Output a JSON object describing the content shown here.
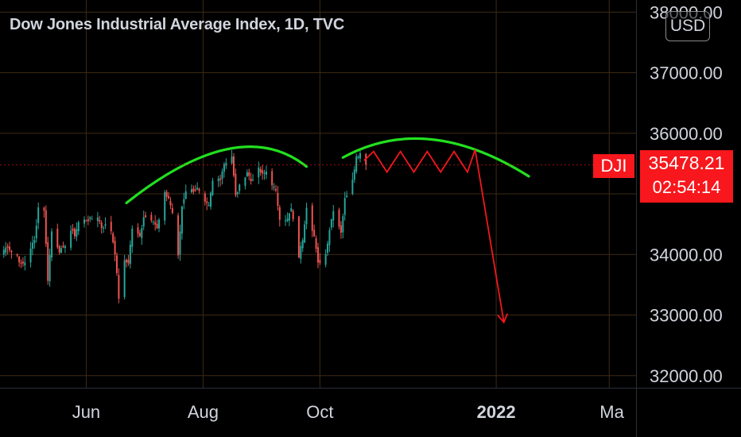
{
  "header": {
    "title": "Dow Jones Industrial Average Index, 1D, TVC"
  },
  "currency_button": {
    "label": "USD"
  },
  "last_price": {
    "ticker": "DJI",
    "value": "35478.21",
    "countdown": "02:54:14",
    "color": "#f7171c"
  },
  "colors": {
    "up": "#26a69a",
    "down": "#ef5350",
    "annotation_curve": "#22e01f",
    "annotation_path": "#f2171c",
    "grid": "#3d2a14",
    "axis_text": "#d1d4dc"
  },
  "chart_data": {
    "type": "candlestick",
    "y_axis": {
      "ticks": [
        32000,
        33000,
        34000,
        35000,
        36000,
        37000,
        38000
      ],
      "labels": [
        "32000.00",
        "33000.00",
        "34000.00",
        "35000.00",
        "36000.00",
        "37000.00",
        "38000.00"
      ],
      "range": [
        31800,
        38200
      ]
    },
    "x_axis": {
      "tick_labels": [
        "Jun",
        "Aug",
        "Oct",
        "2022",
        "Ma"
      ],
      "range": [
        "2021-04-17",
        "2022-03-15"
      ]
    },
    "close_path": [
      [
        "2021-04-19",
        34077
      ],
      [
        "2021-04-21",
        34137
      ],
      [
        "2021-04-23",
        34043
      ],
      [
        "2021-04-26",
        33981
      ],
      [
        "2021-04-28",
        33820
      ],
      [
        "2021-04-30",
        33875
      ],
      [
        "2021-05-03",
        34113
      ],
      [
        "2021-05-05",
        34230
      ],
      [
        "2021-05-07",
        34778
      ],
      [
        "2021-05-10",
        34742
      ],
      [
        "2021-05-12",
        33587
      ],
      [
        "2021-05-14",
        34382
      ],
      [
        "2021-05-18",
        34060
      ],
      [
        "2021-05-20",
        34084
      ],
      [
        "2021-05-24",
        34393
      ],
      [
        "2021-05-26",
        34323
      ],
      [
        "2021-05-28",
        34529
      ],
      [
        "2021-06-01",
        34575
      ],
      [
        "2021-06-03",
        34577
      ],
      [
        "2021-06-07",
        34630
      ],
      [
        "2021-06-09",
        34447
      ],
      [
        "2021-06-11",
        34479
      ],
      [
        "2021-06-14",
        34393
      ],
      [
        "2021-06-16",
        34033
      ],
      [
        "2021-06-18",
        33290
      ],
      [
        "2021-06-21",
        33876
      ],
      [
        "2021-06-23",
        33874
      ],
      [
        "2021-06-25",
        34433
      ],
      [
        "2021-06-29",
        34292
      ],
      [
        "2021-07-01",
        34633
      ],
      [
        "2021-07-06",
        34577
      ],
      [
        "2021-07-08",
        34421
      ],
      [
        "2021-07-12",
        34996
      ],
      [
        "2021-07-14",
        34933
      ],
      [
        "2021-07-16",
        34687
      ],
      [
        "2021-07-19",
        33962
      ],
      [
        "2021-07-21",
        34798
      ],
      [
        "2021-07-23",
        35061
      ],
      [
        "2021-07-27",
        35058
      ],
      [
        "2021-07-29",
        35085
      ],
      [
        "2021-08-02",
        34838
      ],
      [
        "2021-08-04",
        34793
      ],
      [
        "2021-08-06",
        35208
      ],
      [
        "2021-08-10",
        35264
      ],
      [
        "2021-08-12",
        35499
      ],
      [
        "2021-08-16",
        35625
      ],
      [
        "2021-08-18",
        34961
      ],
      [
        "2021-08-20",
        35120
      ],
      [
        "2021-08-24",
        35366
      ],
      [
        "2021-08-26",
        35214
      ],
      [
        "2021-08-30",
        35400
      ],
      [
        "2021-09-01",
        35312
      ],
      [
        "2021-09-03",
        35369
      ],
      [
        "2021-09-08",
        35031
      ],
      [
        "2021-09-10",
        34607
      ],
      [
        "2021-09-14",
        34577
      ],
      [
        "2021-09-16",
        34751
      ],
      [
        "2021-09-20",
        33970
      ],
      [
        "2021-09-22",
        34258
      ],
      [
        "2021-09-24",
        34798
      ],
      [
        "2021-09-28",
        34299
      ],
      [
        "2021-09-30",
        33844
      ],
      [
        "2021-10-04",
        34002
      ],
      [
        "2021-10-06",
        34417
      ],
      [
        "2021-10-08",
        34746
      ],
      [
        "2021-10-12",
        34378
      ],
      [
        "2021-10-14",
        34912
      ],
      [
        "2021-10-18",
        35259
      ],
      [
        "2021-10-20",
        35609
      ],
      [
        "2021-10-22",
        35677
      ],
      [
        "2021-10-25",
        35478
      ]
    ],
    "annotations": [
      {
        "type": "arc",
        "from": [
          "2021-06-22",
          34850
        ],
        "peak": [
          "2021-08-14",
          35740
        ],
        "to": [
          "2021-09-24",
          35450
        ]
      },
      {
        "type": "arc",
        "from": [
          "2021-10-13",
          35600
        ],
        "peak": [
          "2021-11-28",
          35900
        ],
        "to": [
          "2022-01-18",
          35290
        ]
      },
      {
        "type": "zigzag",
        "points": [
          [
            "2021-10-24",
            35550
          ],
          [
            "2021-10-29",
            35700
          ],
          [
            "2021-11-05",
            35360
          ],
          [
            "2021-11-12",
            35700
          ],
          [
            "2021-11-19",
            35360
          ],
          [
            "2021-11-26",
            35700
          ],
          [
            "2021-12-03",
            35360
          ],
          [
            "2021-12-10",
            35700
          ],
          [
            "2021-12-17",
            35360
          ],
          [
            "2021-12-21",
            35730
          ]
        ]
      },
      {
        "type": "arrow",
        "from": [
          "2021-12-21",
          35730
        ],
        "to": [
          "2022-01-05",
          32880
        ]
      }
    ]
  }
}
